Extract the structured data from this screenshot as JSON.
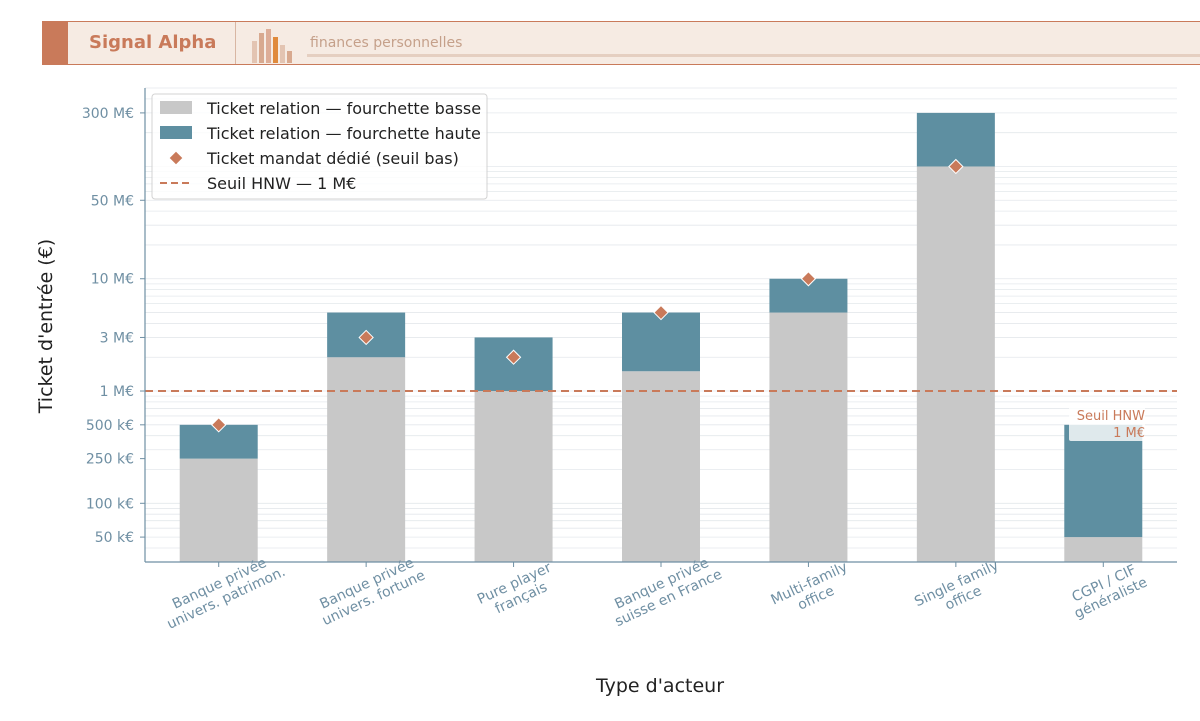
{
  "header": {
    "brand": "Signal Alpha",
    "tagline": "finances personnelles"
  },
  "colors": {
    "low": "#c8c8c8",
    "high": "#5e8fa1",
    "marker": "#c97a5a",
    "threshold": "#c97a5a",
    "axis": "#6f8fa3",
    "tick_label": "#6f8fa3",
    "header_accent": "#c97a5a"
  },
  "chart_data": {
    "type": "bar",
    "stacked": true,
    "yscale": "log",
    "xlabel": "Type d'acteur",
    "ylabel": "Ticket d'entrée (€)",
    "ylim": [
      30000,
      500000000
    ],
    "yticks": [
      {
        "value": 50000,
        "label": "50 k€"
      },
      {
        "value": 100000,
        "label": "100 k€"
      },
      {
        "value": 250000,
        "label": "250 k€"
      },
      {
        "value": 500000,
        "label": "500 k€"
      },
      {
        "value": 1000000,
        "label": "1 M€"
      },
      {
        "value": 3000000,
        "label": "3 M€"
      },
      {
        "value": 10000000,
        "label": "10 M€"
      },
      {
        "value": 50000000,
        "label": "50 M€"
      },
      {
        "value": 300000000,
        "label": "300 M€"
      }
    ],
    "grid": true,
    "legend_position": "top-left",
    "categories": [
      [
        "Banque privée",
        "univers. patrimon."
      ],
      [
        "Banque privée",
        "univers. fortune"
      ],
      [
        "Pure player",
        "français"
      ],
      [
        "Banque privée",
        "suisse en France"
      ],
      [
        "Multi-family",
        "office"
      ],
      [
        "Single family",
        "office"
      ],
      [
        "CGPI / CIF",
        "généraliste"
      ]
    ],
    "series": [
      {
        "name": "Ticket relation — fourchette basse",
        "kind": "bar",
        "values": [
          250000,
          2000000,
          1000000,
          1500000,
          5000000,
          100000000,
          50000
        ]
      },
      {
        "name": "Ticket relation — fourchette haute",
        "kind": "bar",
        "values": [
          500000,
          5000000,
          3000000,
          5000000,
          10000000,
          300000000,
          500000
        ]
      },
      {
        "name": "Ticket mandat dédié (seuil bas)",
        "kind": "marker",
        "values": [
          500000,
          3000000,
          2000000,
          5000000,
          10000000,
          100000000,
          null
        ]
      }
    ],
    "threshold": {
      "name": "Seuil HNW — 1 M€",
      "value": 1000000,
      "annotation": [
        "Seuil HNW",
        "1 M€"
      ]
    }
  }
}
